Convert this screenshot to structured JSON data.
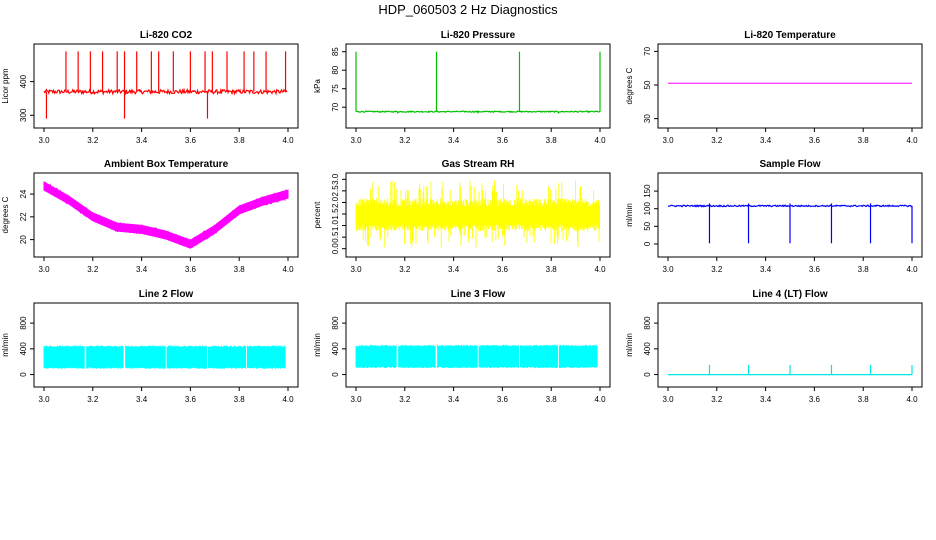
{
  "page": {
    "title": "HDP_060503 2 Hz Diagnostics"
  },
  "chart_data": [
    {
      "type": "line",
      "id": "co2",
      "title": "Li-820 CO2",
      "ylabel": "Licor ppm",
      "color": "#ff0000",
      "xlim": [
        3.0,
        4.0
      ],
      "ylim": [
        280,
        500
      ],
      "xticks": [
        3.0,
        3.2,
        3.4,
        3.6,
        3.8,
        4.0
      ],
      "xtick_labels": [
        "3.0",
        "3.2",
        "3.4",
        "3.6",
        "3.8",
        "4.0"
      ],
      "yticks": [
        300,
        400
      ],
      "ytick_labels": [
        "300",
        "400"
      ],
      "series": [
        {
          "baseline": 370,
          "noise": 6,
          "spikes_up": [
            3.09,
            3.14,
            3.19,
            3.24,
            3.3,
            3.33,
            3.38,
            3.44,
            3.47,
            3.53,
            3.6,
            3.66,
            3.69,
            3.75,
            3.82,
            3.86,
            3.91,
            3.99
          ],
          "spikes_up_value": 490,
          "spikes_down": [
            3.01,
            3.33,
            3.67
          ],
          "spikes_down_value": 290
        }
      ]
    },
    {
      "type": "line",
      "id": "pressure",
      "title": "Li-820 Pressure",
      "ylabel": "kPa",
      "color": "#00c000",
      "xlim": [
        3.0,
        4.0
      ],
      "ylim": [
        66,
        86
      ],
      "xticks": [
        3.0,
        3.2,
        3.4,
        3.6,
        3.8,
        4.0
      ],
      "xtick_labels": [
        "3.0",
        "3.2",
        "3.4",
        "3.6",
        "3.8",
        "4.0"
      ],
      "yticks": [
        70,
        75,
        80,
        85
      ],
      "ytick_labels": [
        "70",
        "75",
        "80",
        "85"
      ],
      "series": [
        {
          "baseline": 68.8,
          "noise": 0.15,
          "spikes_up": [
            3.0,
            3.33,
            3.67,
            4.0
          ],
          "spikes_up_value": 85,
          "spikes_down": [
            3.17,
            3.5,
            3.83
          ],
          "spikes_down_value": 68.3
        }
      ]
    },
    {
      "type": "line",
      "id": "temperature",
      "title": "Li-820 Temperature",
      "ylabel": "degrees C",
      "color": "#ff00ff",
      "xlim": [
        3.0,
        4.0
      ],
      "ylim": [
        28,
        72
      ],
      "xticks": [
        3.0,
        3.2,
        3.4,
        3.6,
        3.8,
        4.0
      ],
      "xtick_labels": [
        "3.0",
        "3.2",
        "3.4",
        "3.6",
        "3.8",
        "4.0"
      ],
      "yticks": [
        30,
        50,
        70
      ],
      "ytick_labels": [
        "30",
        "50",
        "70"
      ],
      "series": [
        {
          "baseline": 51,
          "noise": 0
        }
      ]
    },
    {
      "type": "area",
      "id": "ambient",
      "title": "Ambient Box Temperature",
      "ylabel": "degrees C",
      "color": "#ff00ff",
      "xlim": [
        3.0,
        4.0
      ],
      "ylim": [
        19,
        25.5
      ],
      "xticks": [
        3.0,
        3.2,
        3.4,
        3.6,
        3.8,
        4.0
      ],
      "xtick_labels": [
        "3.0",
        "3.2",
        "3.4",
        "3.6",
        "3.8",
        "4.0"
      ],
      "yticks": [
        20,
        22,
        24
      ],
      "ytick_labels": [
        "20",
        "22",
        "24"
      ],
      "series": [
        {
          "x": [
            3.0,
            3.1,
            3.2,
            3.3,
            3.4,
            3.5,
            3.6,
            3.7,
            3.8,
            3.9,
            4.0
          ],
          "y": [
            24.7,
            23.5,
            22.0,
            21.1,
            20.9,
            20.4,
            19.6,
            20.9,
            22.6,
            23.4,
            24.0
          ],
          "band": 0.35
        }
      ]
    },
    {
      "type": "area",
      "id": "rh",
      "title": "Gas Stream RH",
      "ylabel": "percent",
      "color": "#ffff00",
      "xlim": [
        3.0,
        4.0
      ],
      "ylim": [
        -0.1,
        3.1
      ],
      "xticks": [
        3.0,
        3.2,
        3.4,
        3.6,
        3.8,
        4.0
      ],
      "xtick_labels": [
        "3.0",
        "3.2",
        "3.4",
        "3.6",
        "3.8",
        "4.0"
      ],
      "yticks": [
        0.0,
        0.5,
        1.0,
        1.5,
        2.0,
        2.5,
        3.0
      ],
      "ytick_labels": [
        "0.0",
        "0.5",
        "1.0",
        "1.5",
        "2.0",
        "2.5",
        "3.0"
      ],
      "series": [
        {
          "baseline": 1.4,
          "band_low": 0.9,
          "band_high": 2.0,
          "min": 0.05,
          "max": 2.95
        }
      ]
    },
    {
      "type": "line",
      "id": "sample",
      "title": "Sample Flow",
      "ylabel": "ml/min",
      "color": "#0000ff",
      "xlim": [
        3.0,
        4.0
      ],
      "ylim": [
        -20,
        190
      ],
      "xticks": [
        3.0,
        3.2,
        3.4,
        3.6,
        3.8,
        4.0
      ],
      "xtick_labels": [
        "3.0",
        "3.2",
        "3.4",
        "3.6",
        "3.8",
        "4.0"
      ],
      "yticks": [
        0,
        50,
        100,
        150
      ],
      "ytick_labels": [
        "0",
        "50",
        "100",
        "150"
      ],
      "series": [
        {
          "baseline": 108,
          "noise": 2,
          "spikes_down": [
            3.17,
            3.33,
            3.5,
            3.67,
            3.83,
            4.0
          ],
          "spikes_down_value": 2,
          "spikes_up": [
            3.17,
            3.33,
            3.5,
            3.67,
            3.83
          ],
          "spikes_up_value": 115
        }
      ]
    },
    {
      "type": "area",
      "id": "line2",
      "title": "Line 2 Flow",
      "ylabel": "ml/min",
      "color": "#00ffff",
      "xlim": [
        3.0,
        4.0
      ],
      "ylim": [
        -100,
        1050
      ],
      "xticks": [
        3.0,
        3.2,
        3.4,
        3.6,
        3.8,
        4.0
      ],
      "xtick_labels": [
        "3.0",
        "3.2",
        "3.4",
        "3.6",
        "3.8",
        "4.0"
      ],
      "yticks": [
        0,
        400,
        800
      ],
      "ytick_labels": [
        "0",
        "400",
        "800"
      ],
      "series": [
        {
          "low": 100,
          "high": 440,
          "gaps": [
            3.17,
            3.33,
            3.5,
            3.67,
            3.83
          ],
          "end": 3.99
        }
      ]
    },
    {
      "type": "area",
      "id": "line3",
      "title": "Line 3 Flow",
      "ylabel": "ml/min",
      "color": "#00ffff",
      "xlim": [
        3.0,
        4.0
      ],
      "ylim": [
        -100,
        1050
      ],
      "xticks": [
        3.0,
        3.2,
        3.4,
        3.6,
        3.8,
        4.0
      ],
      "xtick_labels": [
        "3.0",
        "3.2",
        "3.4",
        "3.6",
        "3.8",
        "4.0"
      ],
      "yticks": [
        0,
        400,
        800
      ],
      "ytick_labels": [
        "0",
        "400",
        "800"
      ],
      "series": [
        {
          "low": 110,
          "high": 450,
          "gaps": [
            3.17,
            3.33,
            3.5,
            3.67,
            3.83
          ],
          "end": 3.99
        }
      ]
    },
    {
      "type": "line",
      "id": "line4",
      "title": "Line 4 (LT) Flow",
      "ylabel": "ml/min",
      "color": "#00e5e5",
      "xlim": [
        3.0,
        4.0
      ],
      "ylim": [
        -100,
        1050
      ],
      "xticks": [
        3.0,
        3.2,
        3.4,
        3.6,
        3.8,
        4.0
      ],
      "xtick_labels": [
        "3.0",
        "3.2",
        "3.4",
        "3.6",
        "3.8",
        "4.0"
      ],
      "yticks": [
        0,
        400,
        800
      ],
      "ytick_labels": [
        "0",
        "400",
        "800"
      ],
      "series": [
        {
          "baseline": 0,
          "noise": 0,
          "spikes_up": [
            3.17,
            3.33,
            3.5,
            3.67,
            3.83,
            4.0
          ],
          "spikes_up_value": 150
        }
      ]
    }
  ]
}
